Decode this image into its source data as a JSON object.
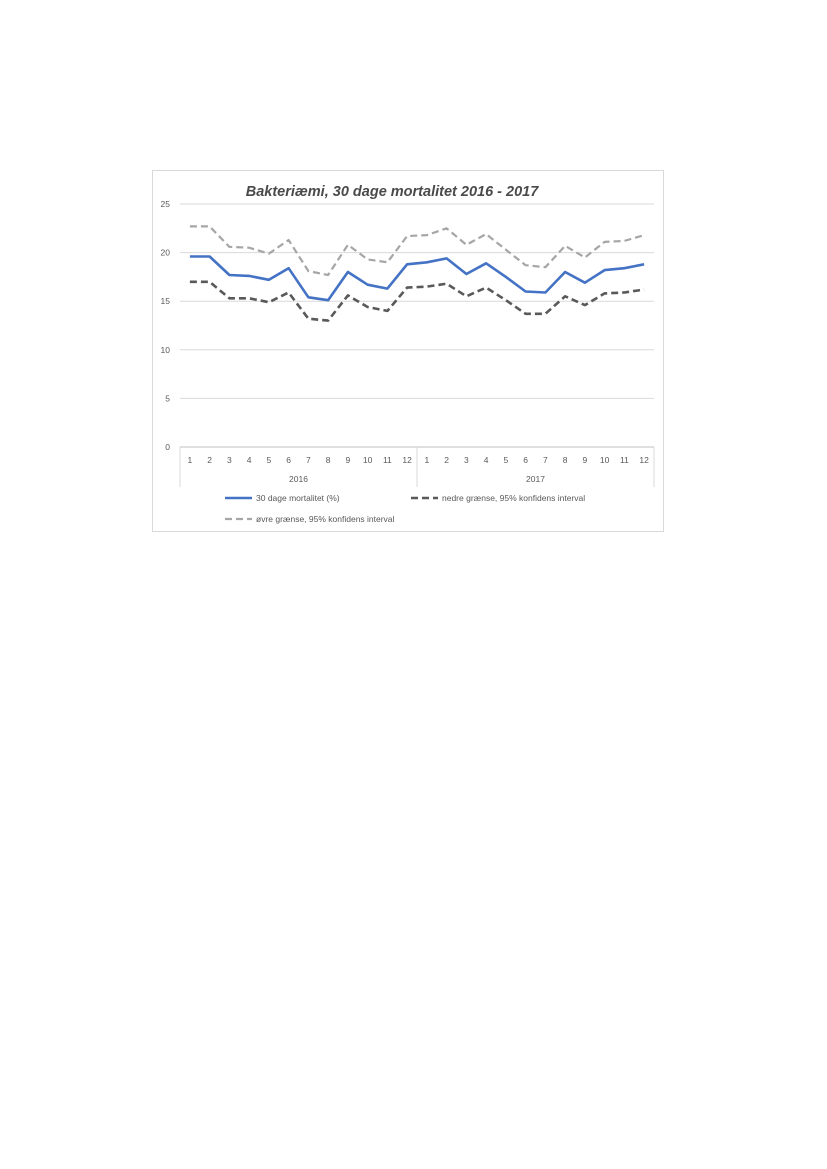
{
  "chart_data": {
    "type": "line",
    "title": "Bakteriæmi, 30 dage mortalitet 2016 - 2017",
    "xlabel": "",
    "ylabel": "",
    "ylim": [
      0,
      25
    ],
    "yticks": [
      "0",
      "5",
      "10",
      "15",
      "20",
      "25"
    ],
    "grid": true,
    "legend_position": "bottom",
    "categories": [
      "1",
      "2",
      "3",
      "4",
      "5",
      "6",
      "7",
      "8",
      "9",
      "10",
      "11",
      "12",
      "1",
      "2",
      "3",
      "4",
      "5",
      "6",
      "7",
      "8",
      "9",
      "10",
      "11",
      "12"
    ],
    "groups": [
      {
        "label": "2016",
        "count": 12
      },
      {
        "label": "2017",
        "count": 12
      }
    ],
    "series": [
      {
        "name": "30 dage mortalitet (%)",
        "color": "#4472c4",
        "style": "solid",
        "values": [
          19.6,
          19.6,
          17.7,
          17.6,
          17.2,
          18.4,
          15.4,
          15.1,
          18.0,
          16.7,
          16.3,
          18.8,
          19.0,
          19.4,
          17.8,
          18.9,
          17.5,
          16.0,
          15.9,
          18.0,
          16.9,
          18.2,
          18.4,
          18.8
        ]
      },
      {
        "name": "nedre grænse, 95% konfidens interval",
        "color": "#595959",
        "style": "dashed",
        "values": [
          17.0,
          17.0,
          15.3,
          15.3,
          14.9,
          15.9,
          13.2,
          13.0,
          15.6,
          14.4,
          14.0,
          16.4,
          16.5,
          16.8,
          15.5,
          16.4,
          15.1,
          13.7,
          13.7,
          15.5,
          14.6,
          15.8,
          15.9,
          16.2
        ]
      },
      {
        "name": "øvre grænse, 95% konfidens interval",
        "color": "#a6a6a6",
        "style": "dashed",
        "values": [
          22.7,
          22.7,
          20.6,
          20.5,
          19.9,
          21.3,
          18.1,
          17.7,
          20.8,
          19.3,
          19.0,
          21.7,
          21.8,
          22.5,
          20.8,
          21.9,
          20.3,
          18.7,
          18.5,
          20.7,
          19.5,
          21.1,
          21.2,
          21.8
        ]
      }
    ]
  }
}
